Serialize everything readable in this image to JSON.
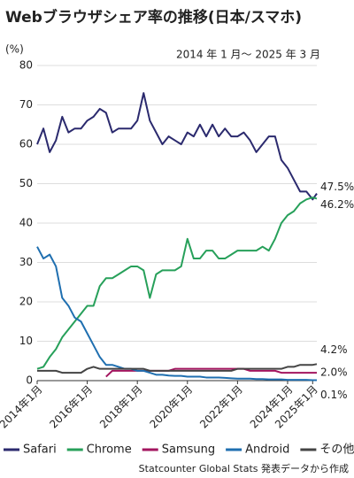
{
  "chart_data": {
    "type": "line",
    "title": "Webブラウザシェア率の推移(日本/スマホ)",
    "subtitle": "2014 年 1 月〜 2025 年 3 月",
    "y_label": "(%)",
    "source": "Statcounter Global Stats 発表データから作成",
    "x": [
      2014,
      2014.25,
      2014.5,
      2014.75,
      2015,
      2015.25,
      2015.5,
      2015.75,
      2016,
      2016.25,
      2016.5,
      2016.75,
      2017,
      2017.25,
      2017.5,
      2017.75,
      2018,
      2018.25,
      2018.5,
      2018.75,
      2019,
      2019.25,
      2019.5,
      2019.75,
      2020,
      2020.25,
      2020.5,
      2020.75,
      2021,
      2021.25,
      2021.5,
      2021.75,
      2022,
      2022.25,
      2022.5,
      2022.75,
      2023,
      2023.25,
      2023.5,
      2023.75,
      2024,
      2024.25,
      2024.5,
      2024.75,
      2025,
      2025.167
    ],
    "xlim": [
      2014,
      2025.167
    ],
    "xticks": [
      {
        "value": 2014,
        "label": "2014年1月"
      },
      {
        "value": 2016,
        "label": "2016年1月"
      },
      {
        "value": 2018,
        "label": "2018年1月"
      },
      {
        "value": 2020,
        "label": "2020年1月"
      },
      {
        "value": 2022,
        "label": "2022年1月"
      },
      {
        "value": 2024,
        "label": "2024年1月"
      },
      {
        "value": 2025,
        "label": "2025年1月"
      }
    ],
    "ylim": [
      0,
      80
    ],
    "yticks": [
      0,
      10,
      20,
      30,
      40,
      50,
      60,
      70,
      80
    ],
    "grid": true,
    "legend": "bottom",
    "series": [
      {
        "name": "Safari",
        "color": "#2b2a6e",
        "values": [
          60,
          64,
          58,
          61,
          67,
          63,
          64,
          64,
          66,
          67,
          69,
          68,
          63,
          64,
          64,
          64,
          66,
          73,
          66,
          63,
          60,
          62,
          61,
          60,
          63,
          62,
          65,
          62,
          65,
          62,
          64,
          62,
          62,
          63,
          61,
          58,
          60,
          62,
          62,
          56,
          54,
          51,
          48,
          48,
          46,
          47.5
        ],
        "value_labels": [
          null,
          null,
          null,
          null,
          null,
          null,
          null,
          null,
          null,
          null,
          null,
          null,
          null,
          null,
          null,
          null,
          null,
          null,
          null,
          null,
          null,
          null,
          null,
          null,
          null,
          null,
          null,
          null,
          null,
          null,
          null,
          null,
          null,
          null,
          null,
          null,
          null,
          null,
          null,
          null,
          null,
          null,
          null,
          null,
          null,
          "47.5%"
        ]
      },
      {
        "name": "Chrome",
        "color": "#27a05a",
        "values": [
          3,
          3.5,
          6,
          8,
          11,
          13,
          15,
          17,
          19,
          19,
          24,
          26,
          26,
          27,
          28,
          29,
          29,
          28,
          21,
          27,
          28,
          28,
          28,
          29,
          36,
          31,
          31,
          33,
          33,
          31,
          31,
          32,
          33,
          33,
          33,
          33,
          34,
          33,
          36,
          40,
          42,
          43,
          45,
          46,
          46.5,
          46.2
        ],
        "value_labels": [
          null,
          null,
          null,
          null,
          null,
          null,
          null,
          null,
          null,
          null,
          null,
          null,
          null,
          null,
          null,
          null,
          null,
          null,
          null,
          null,
          null,
          null,
          null,
          null,
          null,
          null,
          null,
          null,
          null,
          null,
          null,
          null,
          null,
          null,
          null,
          null,
          null,
          null,
          null,
          null,
          null,
          null,
          null,
          null,
          null,
          "46.2%"
        ]
      },
      {
        "name": "Samsung",
        "color": "#a3155f",
        "values": [
          null,
          null,
          null,
          null,
          null,
          null,
          null,
          null,
          null,
          null,
          null,
          1,
          2.5,
          2.5,
          2.5,
          2.5,
          2.5,
          2.5,
          2.5,
          2.5,
          2.5,
          2.5,
          3,
          3,
          3,
          3,
          3,
          3,
          3,
          3,
          3,
          3,
          3,
          3,
          2.5,
          2.5,
          2.5,
          2.5,
          2.5,
          2,
          2,
          2,
          2,
          2,
          2,
          2.0
        ],
        "value_labels": [
          null,
          null,
          null,
          null,
          null,
          null,
          null,
          null,
          null,
          null,
          null,
          null,
          null,
          null,
          null,
          null,
          null,
          null,
          null,
          null,
          null,
          null,
          null,
          null,
          null,
          null,
          null,
          null,
          null,
          null,
          null,
          null,
          null,
          null,
          null,
          null,
          null,
          null,
          null,
          null,
          null,
          null,
          null,
          null,
          null,
          "2.0%"
        ]
      },
      {
        "name": "Android",
        "color": "#1f6fb0",
        "values": [
          34,
          31,
          32,
          29,
          21,
          19,
          16,
          15,
          12,
          9,
          6,
          4,
          4,
          3.5,
          3,
          3,
          2.5,
          2.5,
          2,
          1.5,
          1.5,
          1.3,
          1.2,
          1.2,
          1,
          1,
          1,
          0.8,
          0.8,
          0.8,
          0.7,
          0.6,
          0.5,
          0.5,
          0.5,
          0.4,
          0.4,
          0.3,
          0.3,
          0.3,
          0.2,
          0.2,
          0.2,
          0.2,
          0.1,
          0.1
        ],
        "value_labels": [
          null,
          null,
          null,
          null,
          null,
          null,
          null,
          null,
          null,
          null,
          null,
          null,
          null,
          null,
          null,
          null,
          null,
          null,
          null,
          null,
          null,
          null,
          null,
          null,
          null,
          null,
          null,
          null,
          null,
          null,
          null,
          null,
          null,
          null,
          null,
          null,
          null,
          null,
          null,
          null,
          null,
          null,
          null,
          null,
          null,
          "0.1%"
        ]
      },
      {
        "name": "その他",
        "color": "#444444",
        "values": [
          2.5,
          2.5,
          2.5,
          2.5,
          2,
          2,
          2,
          2,
          3,
          3.5,
          3,
          3,
          3,
          3,
          3,
          3,
          3,
          3,
          2.5,
          2.5,
          2.5,
          2.5,
          2.5,
          2.5,
          2.5,
          2.5,
          2.5,
          2.5,
          2.5,
          2.5,
          2.5,
          2.5,
          3,
          3,
          3,
          3,
          3,
          3,
          3,
          3,
          3.5,
          3.5,
          4,
          4,
          4,
          4.2
        ],
        "value_labels": [
          null,
          null,
          null,
          null,
          null,
          null,
          null,
          null,
          null,
          null,
          null,
          null,
          null,
          null,
          null,
          null,
          null,
          null,
          null,
          null,
          null,
          null,
          null,
          null,
          null,
          null,
          null,
          null,
          null,
          null,
          null,
          null,
          null,
          null,
          null,
          null,
          null,
          null,
          null,
          null,
          null,
          null,
          null,
          null,
          null,
          "4.2%"
        ]
      }
    ]
  }
}
